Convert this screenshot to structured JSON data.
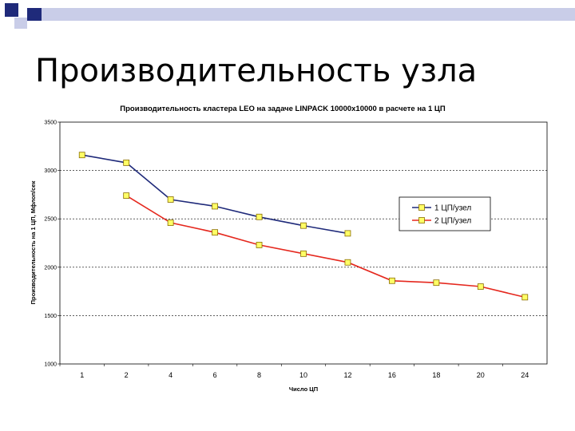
{
  "slide": {
    "title": "Производительность узла"
  },
  "colors": {
    "deco_dark": "#1f2a7a",
    "deco_light": "#c9cde8",
    "series1": "#1f2a7a",
    "series2": "#e5281e",
    "marker_fill": "#ffff66",
    "marker_stroke": "#8a6d00",
    "grid": "#000000"
  },
  "chart_data": {
    "type": "line",
    "title": "Производительность кластера LEO на задаче LINPACK 10000x10000 в расчете на 1 ЦП",
    "xlabel": "Число ЦП",
    "ylabel": "Производительность на 1 ЦП, Мфлоп/сек",
    "categories": [
      "1",
      "2",
      "4",
      "6",
      "8",
      "10",
      "12",
      "16",
      "18",
      "20",
      "24"
    ],
    "yticks": [
      "3500",
      "3000",
      "2500",
      "2000",
      "1500",
      "1000"
    ],
    "ylim": [
      1000,
      3500
    ],
    "grid": "horizontal dashed",
    "legend_position": "right",
    "series": [
      {
        "name": "1 ЦП/узел",
        "values": [
          3160,
          3080,
          2700,
          2630,
          2520,
          2430,
          2350,
          null,
          null,
          null,
          null
        ]
      },
      {
        "name": "2 ЦП/узел",
        "values": [
          null,
          2740,
          2460,
          2360,
          2230,
          2140,
          2050,
          1860,
          1840,
          1800,
          1690
        ]
      }
    ]
  }
}
